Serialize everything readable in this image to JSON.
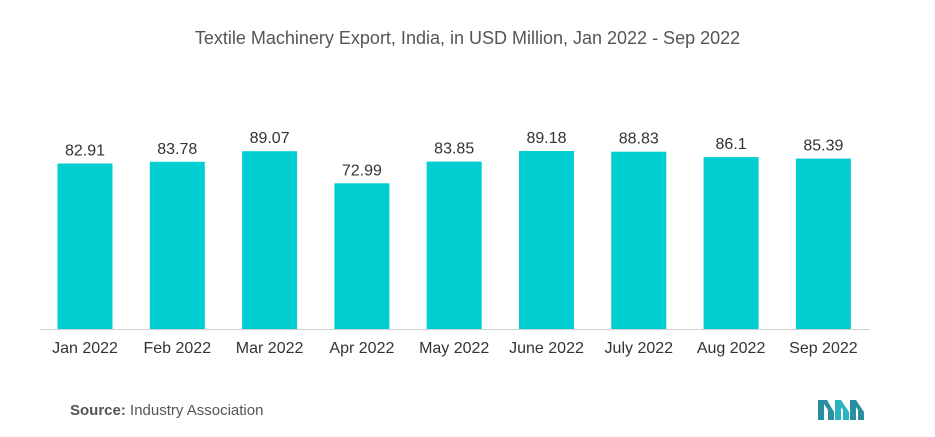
{
  "title": "Textile Machinery Export, India, in USD Million, Jan 2022 - Sep 2022",
  "chart_data": {
    "type": "bar",
    "title": "Textile Machinery Export, India, in USD Million, Jan 2022 - Sep 2022",
    "categories": [
      "Jan 2022",
      "Feb 2022",
      "Mar 2022",
      "Apr 2022",
      "May 2022",
      "June 2022",
      "July 2022",
      "Aug 2022",
      "Sep 2022"
    ],
    "values": [
      82.91,
      83.78,
      89.07,
      72.99,
      83.85,
      89.18,
      88.83,
      86.1,
      85.39
    ],
    "value_labels": [
      "82.91",
      "83.78",
      "89.07",
      "72.99",
      "83.85",
      "89.18",
      "88.83",
      "86.1",
      "85.39"
    ],
    "xlabel": "",
    "ylabel": "",
    "ylim": [
      0,
      89.18
    ],
    "grid": false,
    "bar_color": "#00CED1"
  },
  "source": {
    "label": "Source:",
    "text": "Industry Association"
  },
  "logo": {
    "icon": "mordor-logo-icon",
    "color": "#2a8fa0"
  }
}
